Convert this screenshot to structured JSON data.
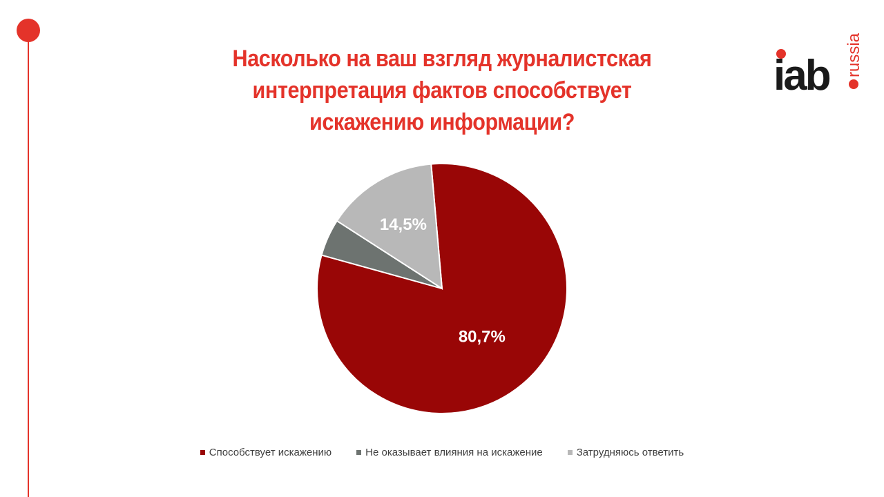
{
  "title_lines": [
    "Насколько на ваш взгляд журналистская",
    "интерпретация фактов способствует",
    "искажению информации?"
  ],
  "logo": {
    "text_main": "iab",
    "text_sub": "russia"
  },
  "colors": {
    "accent": "#E4332A",
    "title": "#E4332A",
    "logo_text": "#1A1A1A",
    "series": [
      "#990606",
      "#6D7370",
      "#B8B8B8"
    ]
  },
  "chart_data": {
    "type": "pie",
    "title": "Насколько на ваш взгляд журналистская интерпретация фактов способствует искажению информации?",
    "categories": [
      "Способствует искажению",
      "Не оказывает влияния на искажение",
      "Затрудняюсь ответить"
    ],
    "values": [
      80.7,
      4.8,
      14.5
    ],
    "data_labels": [
      "80,7%",
      "",
      "14,5%"
    ],
    "legend_position": "bottom"
  }
}
